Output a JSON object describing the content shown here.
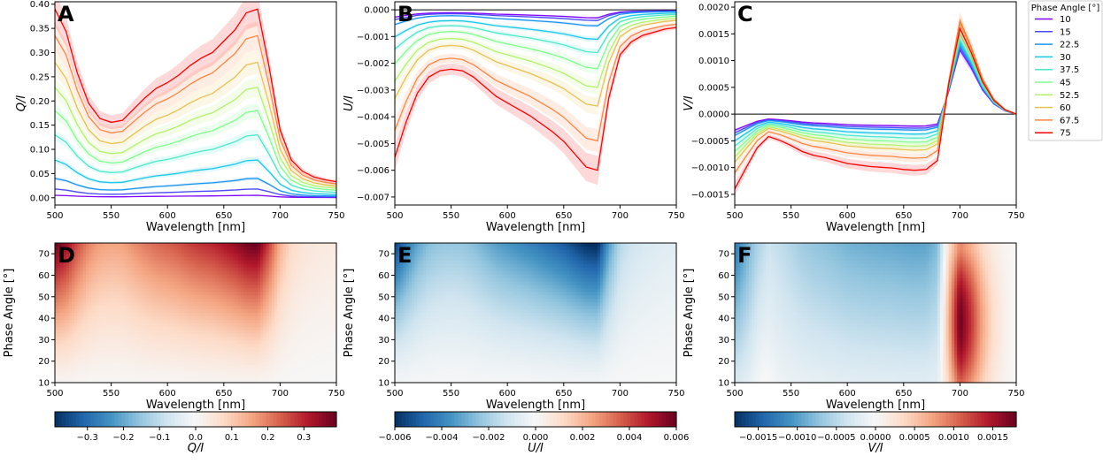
{
  "chart_data": [
    {
      "panel": "A",
      "type": "line",
      "xlabel": "Wavelength [nm]",
      "ylabel": "Q/I",
      "xlim": [
        500,
        750
      ],
      "ylim": [
        -0.015,
        0.405
      ],
      "xticks": [
        500,
        550,
        600,
        650,
        700,
        750
      ],
      "yticks": [
        0.0,
        0.05,
        0.1,
        0.15,
        0.2,
        0.25,
        0.3,
        0.35,
        0.4
      ],
      "ytick_labels": [
        "0.00",
        "0.05",
        "0.10",
        "0.15",
        "0.20",
        "0.25",
        "0.30",
        "0.35",
        "0.40"
      ],
      "x": [
        500,
        510,
        520,
        530,
        540,
        550,
        560,
        570,
        580,
        590,
        600,
        610,
        620,
        630,
        640,
        650,
        660,
        670,
        680,
        690,
        700,
        710,
        720,
        730,
        740,
        750
      ],
      "shape": [
        1.0,
        0.88,
        0.66,
        0.5,
        0.42,
        0.4,
        0.41,
        0.47,
        0.53,
        0.58,
        0.61,
        0.65,
        0.7,
        0.74,
        0.77,
        0.83,
        0.89,
        0.98,
        1.0,
        0.7,
        0.36,
        0.2,
        0.14,
        0.11,
        0.095,
        0.085
      ],
      "series": [
        {
          "name": "10",
          "peak": 0.005
        },
        {
          "name": "15",
          "peak": 0.018
        },
        {
          "name": "22.5",
          "peak": 0.04
        },
        {
          "name": "30",
          "peak": 0.078
        },
        {
          "name": "37.5",
          "peak": 0.13
        },
        {
          "name": "45",
          "peak": 0.18
        },
        {
          "name": "52.5",
          "peak": 0.228
        },
        {
          "name": "60",
          "peak": 0.28
        },
        {
          "name": "67.5",
          "peak": 0.335
        },
        {
          "name": "75",
          "peak": 0.39
        }
      ],
      "hline": null
    },
    {
      "panel": "B",
      "type": "line",
      "xlabel": "Wavelength [nm]",
      "ylabel": "U/I",
      "xlim": [
        500,
        750
      ],
      "ylim": [
        -0.0073,
        0.0003
      ],
      "xticks": [
        500,
        550,
        600,
        650,
        700,
        750
      ],
      "yticks": [
        0.0,
        -0.001,
        -0.002,
        -0.003,
        -0.004,
        -0.005,
        -0.006,
        -0.007
      ],
      "ytick_labels": [
        "0.000",
        "−0.001",
        "−0.002",
        "−0.003",
        "−0.004",
        "−0.005",
        "−0.006",
        "−0.007"
      ],
      "x": [
        500,
        510,
        520,
        530,
        540,
        550,
        560,
        570,
        580,
        590,
        600,
        610,
        620,
        630,
        640,
        650,
        660,
        670,
        680,
        690,
        700,
        710,
        720,
        730,
        740,
        750
      ],
      "shape": [
        0.92,
        0.7,
        0.52,
        0.42,
        0.38,
        0.37,
        0.38,
        0.42,
        0.48,
        0.54,
        0.58,
        0.62,
        0.66,
        0.71,
        0.76,
        0.82,
        0.9,
        0.98,
        1.0,
        0.55,
        0.28,
        0.2,
        0.16,
        0.14,
        0.12,
        0.11
      ],
      "series": [
        {
          "name": "10",
          "peak": -0.0003
        },
        {
          "name": "15",
          "peak": -0.0004
        },
        {
          "name": "22.5",
          "peak": -0.0006
        },
        {
          "name": "30",
          "peak": -0.0011
        },
        {
          "name": "37.5",
          "peak": -0.0016
        },
        {
          "name": "45",
          "peak": -0.0022
        },
        {
          "name": "52.5",
          "peak": -0.0029
        },
        {
          "name": "60",
          "peak": -0.0036
        },
        {
          "name": "67.5",
          "peak": -0.0049
        },
        {
          "name": "75",
          "peak": -0.006
        }
      ],
      "hline": 0
    },
    {
      "panel": "C",
      "type": "line",
      "xlabel": "Wavelength [nm]",
      "ylabel": "V/I",
      "xlim": [
        500,
        750
      ],
      "ylim": [
        -0.0017,
        0.0021
      ],
      "xticks": [
        500,
        550,
        600,
        650,
        700,
        750
      ],
      "yticks": [
        0.002,
        0.0015,
        0.001,
        0.0005,
        0.0,
        -0.0005,
        -0.001,
        -0.0015
      ],
      "ytick_labels": [
        "0.0020",
        "0.0015",
        "0.0010",
        "0.0005",
        "0.0000",
        "−0.0005",
        "−0.0010",
        "−0.0015"
      ],
      "x": [
        500,
        510,
        520,
        530,
        540,
        550,
        560,
        570,
        580,
        590,
        600,
        610,
        620,
        630,
        640,
        650,
        660,
        670,
        680,
        690,
        700,
        710,
        720,
        730,
        740,
        750
      ],
      "neg_shape": [
        1.0,
        0.72,
        0.45,
        0.3,
        0.35,
        0.42,
        0.5,
        0.55,
        0.58,
        0.62,
        0.66,
        0.68,
        0.7,
        0.71,
        0.72,
        0.74,
        0.75,
        0.74,
        0.62,
        0.0,
        0.0,
        0.0,
        0.0,
        0.0,
        0.0,
        0.0
      ],
      "pos_shape": [
        0.0,
        0.0,
        0.0,
        0.0,
        0.0,
        0.0,
        0.0,
        0.0,
        0.0,
        0.0,
        0.0,
        0.0,
        0.0,
        0.0,
        0.0,
        0.0,
        0.0,
        0.0,
        0.0,
        0.35,
        1.0,
        0.72,
        0.38,
        0.16,
        0.05,
        0.0
      ],
      "series": [
        {
          "name": "10",
          "neg": -0.0003,
          "pos": 0.0012
        },
        {
          "name": "15",
          "neg": -0.00035,
          "pos": 0.00125
        },
        {
          "name": "22.5",
          "neg": -0.0004,
          "pos": 0.0013
        },
        {
          "name": "30",
          "neg": -0.0005,
          "pos": 0.00135
        },
        {
          "name": "37.5",
          "neg": -0.0006,
          "pos": 0.0014
        },
        {
          "name": "45",
          "neg": -0.0007,
          "pos": 0.0015
        },
        {
          "name": "52.5",
          "neg": -0.0008,
          "pos": 0.0016
        },
        {
          "name": "60",
          "neg": -0.0009,
          "pos": 0.0017
        },
        {
          "name": "67.5",
          "neg": -0.0011,
          "pos": 0.00175
        },
        {
          "name": "75",
          "neg": -0.0014,
          "pos": 0.0016
        }
      ],
      "hline": 0
    },
    {
      "panel": "D",
      "type": "heatmap",
      "xlabel": "Wavelength [nm]",
      "ylabel": "Phase Angle [°]",
      "xlim": [
        500,
        750
      ],
      "ylim": [
        10,
        75
      ],
      "xticks": [
        500,
        550,
        600,
        650,
        700,
        750
      ],
      "yticks": [
        10,
        20,
        30,
        40,
        50,
        60,
        70
      ],
      "colorbar": {
        "label": "Q/I",
        "min": -0.39,
        "max": 0.39,
        "ticks": [
          -0.3,
          -0.2,
          -0.1,
          0.0,
          0.1,
          0.2,
          0.3
        ],
        "tick_labels": [
          "−0.3",
          "−0.2",
          "−0.1",
          "0.0",
          "0.1",
          "0.2",
          "0.3"
        ]
      }
    },
    {
      "panel": "E",
      "type": "heatmap",
      "xlabel": "Wavelength [nm]",
      "ylabel": "Phase Angle [°]",
      "xlim": [
        500,
        750
      ],
      "ylim": [
        10,
        75
      ],
      "xticks": [
        500,
        550,
        600,
        650,
        700,
        750
      ],
      "yticks": [
        10,
        20,
        30,
        40,
        50,
        60,
        70
      ],
      "colorbar": {
        "label": "U/I",
        "min": -0.006,
        "max": 0.006,
        "ticks": [
          -0.006,
          -0.004,
          -0.002,
          0.0,
          0.002,
          0.004,
          0.006
        ],
        "tick_labels": [
          "−0.006",
          "−0.004",
          "−0.002",
          "0.000",
          "0.002",
          "0.004",
          "0.006"
        ]
      }
    },
    {
      "panel": "F",
      "type": "heatmap",
      "xlabel": "Wavelength [nm]",
      "ylabel": "Phase Angle [°]",
      "xlim": [
        500,
        750
      ],
      "ylim": [
        10,
        75
      ],
      "xticks": [
        500,
        550,
        600,
        650,
        700,
        750
      ],
      "yticks": [
        10,
        20,
        30,
        40,
        50,
        60,
        70
      ],
      "colorbar": {
        "label": "V/I",
        "min": -0.0018,
        "max": 0.0018,
        "ticks": [
          -0.0015,
          -0.001,
          -0.0005,
          0.0,
          0.0005,
          0.001,
          0.0015
        ],
        "tick_labels": [
          "−0.0015",
          "−0.0010",
          "−0.0005",
          "0.0000",
          "0.0005",
          "0.0010",
          "0.0015"
        ]
      }
    }
  ],
  "legend": {
    "title": "Phase Angle [°]",
    "entries": [
      "10",
      "15",
      "22.5",
      "30",
      "37.5",
      "45",
      "52.5",
      "60",
      "67.5",
      "75"
    ],
    "colors": [
      "#8000ff",
      "#4a49fb",
      "#1996f3",
      "#1ac7e9",
      "#4de8c8",
      "#80ff8e",
      "#b3f26d",
      "#e6c24f",
      "#ff8542",
      "#ff0000"
    ]
  }
}
